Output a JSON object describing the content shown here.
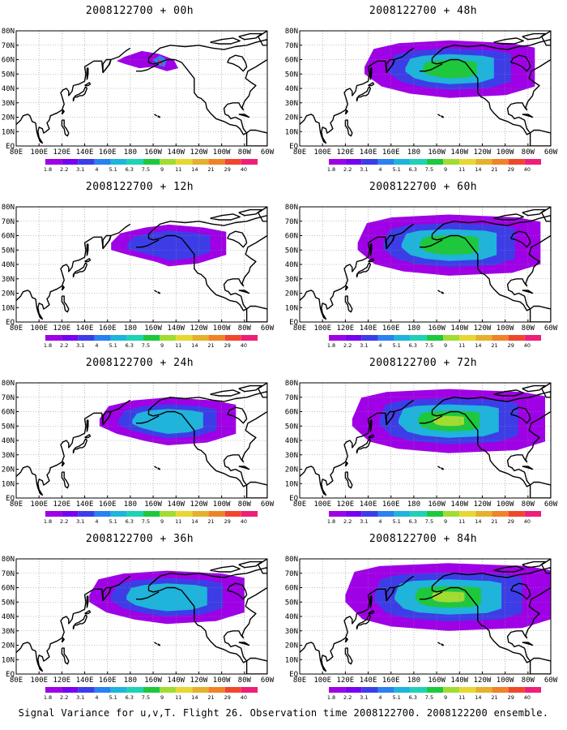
{
  "panels": [
    {
      "title": "2008122700 + 00h",
      "lead_hours": 0,
      "intensity": 0.0
    },
    {
      "title": "2008122700 + 48h",
      "lead_hours": 48,
      "intensity": 0.72
    },
    {
      "title": "2008122700 + 12h",
      "lead_hours": 12,
      "intensity": 0.28
    },
    {
      "title": "2008122700 + 60h",
      "lead_hours": 60,
      "intensity": 0.82
    },
    {
      "title": "2008122700 + 24h",
      "lead_hours": 24,
      "intensity": 0.45
    },
    {
      "title": "2008122700 + 72h",
      "lead_hours": 72,
      "intensity": 0.9
    },
    {
      "title": "2008122700 + 36h",
      "lead_hours": 36,
      "intensity": 0.6
    },
    {
      "title": "2008122700 + 84h",
      "lead_hours": 84,
      "intensity": 1.0
    }
  ],
  "lat_labels": [
    "80N",
    "70N",
    "60N",
    "50N",
    "40N",
    "30N",
    "20N",
    "10N",
    "EQ"
  ],
  "lon_labels": [
    "80E",
    "100E",
    "120E",
    "140E",
    "160E",
    "180",
    "160W",
    "140W",
    "120W",
    "100W",
    "80W",
    "60W"
  ],
  "colorbar": {
    "levels": [
      "1.8",
      "2.2",
      "3.1",
      "4",
      "5.1",
      "6.3",
      "7.5",
      "9",
      "11",
      "14",
      "21",
      "29",
      "40"
    ],
    "colors": [
      "#9f00e6",
      "#7800f0",
      "#3d3de8",
      "#2882f0",
      "#1eb4dc",
      "#1ed2b4",
      "#1ec83c",
      "#a0dc32",
      "#e6d732",
      "#e6af2d",
      "#f08228",
      "#f0462d",
      "#f01e78"
    ]
  },
  "footer": "Signal Variance for u,v,T. Flight 26. Observation time 2008122700. 2008122200 ensemble."
}
